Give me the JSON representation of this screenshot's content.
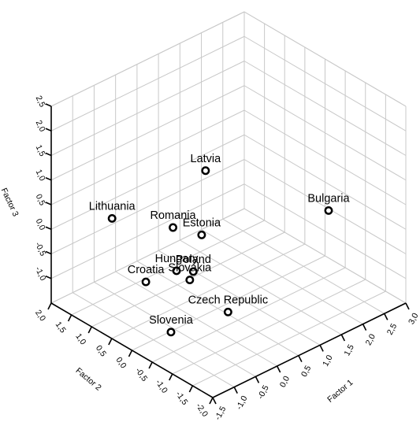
{
  "chart_data": {
    "type": "scatter",
    "subtype": "3d-scatter-with-drop-lines",
    "title": "",
    "axes": {
      "x": {
        "title": "Factor 1",
        "range": [
          -1.5,
          3.0
        ],
        "ticks": [
          "-1,5",
          "-1,0",
          "-0,5",
          "0,0",
          "0,5",
          "1,0",
          "1,5",
          "2,0",
          "2,5",
          "3,0"
        ]
      },
      "y": {
        "title": "Factor 2",
        "range": [
          -2.0,
          2.0
        ],
        "ticks": [
          "-2,0",
          "-1,5",
          "-1,0",
          "-0,5",
          "0,0",
          "0,5",
          "1,0",
          "1,5",
          "2,0"
        ]
      },
      "z": {
        "title": "Factor 3",
        "range": [
          -1.5,
          2.5
        ],
        "ticks": [
          "-1,0",
          "-0,5",
          "0,0",
          "0,5",
          "1,0",
          "1,5",
          "2,0",
          "2,5"
        ]
      }
    },
    "grid": true,
    "points": [
      {
        "label": "Latvia",
        "x": 0.45,
        "y": 0.25,
        "z": 1.2
      },
      {
        "label": "Lithuania",
        "x": -1.4,
        "y": 0.6,
        "z": 0.85
      },
      {
        "label": "Romania",
        "x": -0.45,
        "y": 0.1,
        "z": 0.5
      },
      {
        "label": "Estonia",
        "x": -0.3,
        "y": -0.45,
        "z": 0.55
      },
      {
        "label": "Bulgaria",
        "x": 2.0,
        "y": -1.15,
        "z": 0.4
      },
      {
        "label": "Hungary",
        "x": -0.65,
        "y": -0.2,
        "z": -0.15
      },
      {
        "label": "Poland",
        "x": -0.4,
        "y": -0.35,
        "z": -0.2
      },
      {
        "label": "Croatia",
        "x": -0.8,
        "y": 0.4,
        "z": -0.6
      },
      {
        "label": "Slovakia",
        "x": -0.2,
        "y": -0.05,
        "z": -0.6
      },
      {
        "label": "Slovenia",
        "x": -1.25,
        "y": -0.7,
        "z": -0.9
      },
      {
        "label": "Czech Republic",
        "x": -0.25,
        "y": -1.05,
        "z": -0.75
      }
    ]
  }
}
